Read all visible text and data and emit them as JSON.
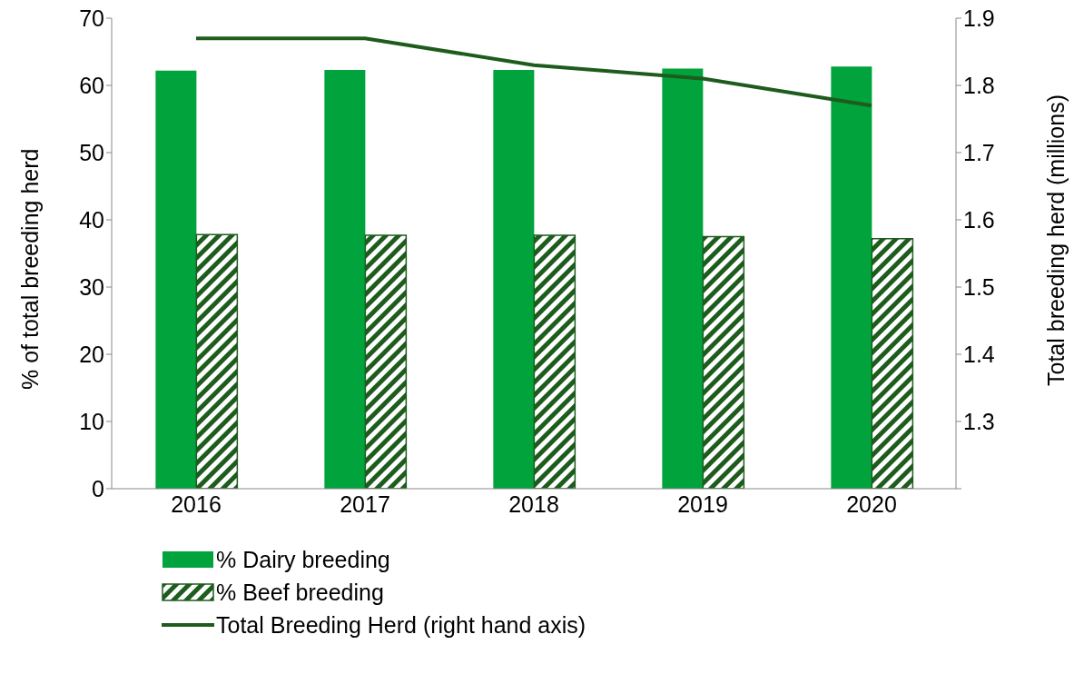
{
  "chart_data": {
    "type": "bar",
    "ylabel": "% of total breeding herd",
    "y2label": "Total breeding herd (millions)",
    "categories": [
      "2016",
      "2017",
      "2018",
      "2019",
      "2020"
    ],
    "series": [
      {
        "name": "% Dairy breeding",
        "color": "#00a33c",
        "values": [
          62.2,
          62.3,
          62.3,
          62.5,
          62.8
        ]
      },
      {
        "name": "% Beef breeding",
        "color": "#1e5c1e",
        "values": [
          37.8,
          37.7,
          37.7,
          37.5,
          37.2
        ]
      },
      {
        "name": "Total Breeding Herd (right hand axis)",
        "type": "line",
        "axis": "y2",
        "color": "#1e5c1e",
        "values": [
          1.87,
          1.87,
          1.83,
          1.81,
          1.77
        ]
      }
    ],
    "ylim": [
      0,
      70
    ],
    "yticks": [
      0,
      10,
      20,
      30,
      40,
      50,
      60,
      70
    ],
    "y2lim": [
      1.2,
      1.9
    ],
    "y2ticks": [
      {
        "value": 1.2,
        "label": null
      },
      1.3,
      1.4,
      1.5,
      1.6,
      1.7,
      1.8,
      1.9
    ],
    "grid": false,
    "legend": "bottom",
    "marker": "none"
  }
}
